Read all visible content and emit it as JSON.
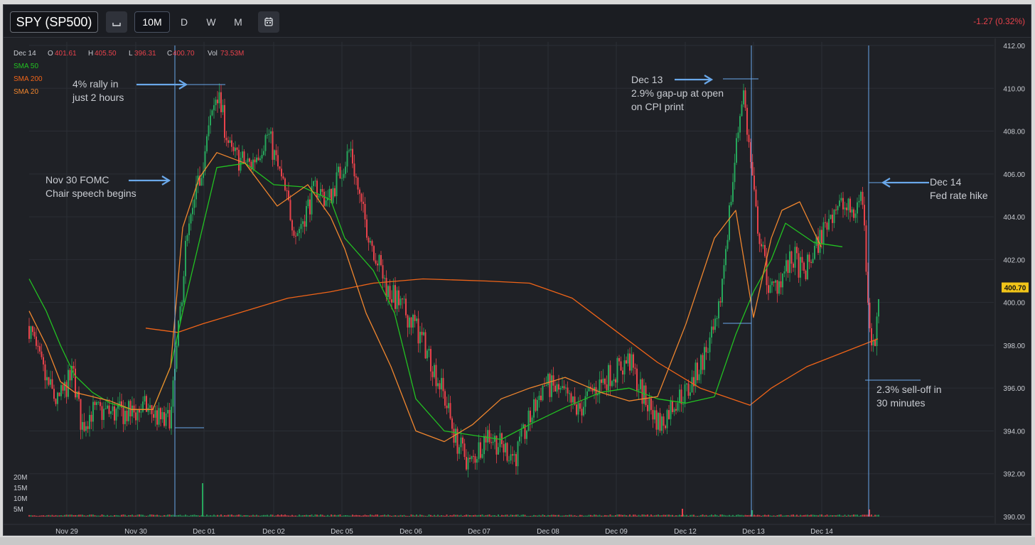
{
  "toolbar": {
    "symbol": "SPY (SP500)",
    "chart_type_icon": "candlestick-icon",
    "timeframes": [
      "10M",
      "D",
      "W",
      "M"
    ],
    "active_timeframe": "10M",
    "calendar_icon": "calendar-icon",
    "change": "-1.27 (0.32%)",
    "change_color": "#e8424b"
  },
  "ohlc": {
    "date": "Dec 14",
    "o_label": "O",
    "o": "401.61",
    "h_label": "H",
    "h": "405.50",
    "l_label": "L",
    "l": "396.31",
    "c_label": "C",
    "c": "400.70",
    "vol_label": "Vol",
    "vol": "73.53M"
  },
  "legend": [
    {
      "name": "SMA 50",
      "color": "#22c122"
    },
    {
      "name": "SMA 200",
      "color": "#f06418"
    },
    {
      "name": "SMA 20",
      "color": "#f0862e"
    }
  ],
  "price_badge": "400.70",
  "colors": {
    "up": "#26a65b",
    "down": "#e8424b",
    "annotation": "#6aa8ea"
  },
  "annotations": [
    {
      "id": "rally",
      "lines": [
        "4% rally in",
        "just 2 hours"
      ]
    },
    {
      "id": "fomc",
      "lines": [
        "Nov 30 FOMC",
        "Chair speech begins"
      ]
    },
    {
      "id": "cpi",
      "lines": [
        "Dec 13",
        "2.9% gap-up at open",
        "on CPI print"
      ]
    },
    {
      "id": "hike",
      "lines": [
        "Dec 14",
        "Fed rate hike"
      ]
    },
    {
      "id": "selloff",
      "lines": [
        "2.3% sell-off in",
        "30 minutes"
      ]
    }
  ],
  "chart_data": {
    "type": "candlestick",
    "title": "SPY (SP500)",
    "interval": "10M",
    "x_tick_labels": [
      "Nov 29",
      "Nov 30",
      "Dec 01",
      "Dec 02",
      "Dec 05",
      "Dec 06",
      "Dec 07",
      "Dec 08",
      "Dec 09",
      "Dec 12",
      "Dec 13",
      "Dec 14"
    ],
    "y_ticks": [
      "390.00",
      "392.00",
      "394.00",
      "396.00",
      "398.00",
      "400.00",
      "402.00",
      "404.00",
      "406.00",
      "408.00",
      "410.00",
      "412.00"
    ],
    "ylim": [
      390,
      412
    ],
    "volume_ticks": [
      "20M",
      "15M",
      "10M",
      "5M"
    ],
    "grid": true,
    "legend_position": "top-left",
    "price_path": [
      {
        "x": "Nov 28",
        "close": 398.9
      },
      {
        "x": "Nov 28",
        "close": 397.5
      },
      {
        "x": "Nov 28",
        "close": 396.3
      },
      {
        "x": "Nov 29",
        "close": 395.3
      },
      {
        "x": "Nov 29",
        "close": 396.7
      },
      {
        "x": "Nov 29",
        "close": 394.2
      },
      {
        "x": "Nov 29",
        "close": 394.9
      },
      {
        "x": "Nov 30",
        "close": 394.8
      },
      {
        "x": "Nov 30",
        "close": 395.1
      },
      {
        "x": "Nov 30",
        "close": 394.3
      },
      {
        "x": "Nov 30",
        "close": 394.9
      },
      {
        "x": "Nov 30",
        "close": 398.6
      },
      {
        "x": "Nov 30",
        "close": 402.5
      },
      {
        "x": "Nov 30",
        "close": 404.8
      },
      {
        "x": "Dec 01",
        "close": 409.9
      },
      {
        "x": "Dec 01",
        "close": 406.9
      },
      {
        "x": "Dec 01",
        "close": 406.4
      },
      {
        "x": "Dec 01",
        "close": 407.9
      },
      {
        "x": "Dec 02",
        "close": 403.2
      },
      {
        "x": "Dec 02",
        "close": 405.4
      },
      {
        "x": "Dec 02",
        "close": 404.7
      },
      {
        "x": "Dec 05",
        "close": 407.2
      },
      {
        "x": "Dec 05",
        "close": 404.3
      },
      {
        "x": "Dec 05",
        "close": 402.6
      },
      {
        "x": "Dec 05",
        "close": 400.6
      },
      {
        "x": "Dec 06",
        "close": 399.1
      },
      {
        "x": "Dec 06",
        "close": 397.6
      },
      {
        "x": "Dec 06",
        "close": 395.6
      },
      {
        "x": "Dec 06",
        "close": 393.6
      },
      {
        "x": "Dec 07",
        "close": 392.4
      },
      {
        "x": "Dec 07",
        "close": 393.9
      },
      {
        "x": "Dec 07",
        "close": 393.3
      },
      {
        "x": "Dec 08",
        "close": 392.8
      },
      {
        "x": "Dec 08",
        "close": 396.2
      },
      {
        "x": "Dec 08",
        "close": 395.8
      },
      {
        "x": "Dec 08",
        "close": 394.9
      },
      {
        "x": "Dec 09",
        "close": 395.9
      },
      {
        "x": "Dec 09",
        "close": 396.6
      },
      {
        "x": "Dec 09",
        "close": 397.3
      },
      {
        "x": "Dec 09",
        "close": 395.6
      },
      {
        "x": "Dec 12",
        "close": 394.3
      },
      {
        "x": "Dec 12",
        "close": 395.4
      },
      {
        "x": "Dec 12",
        "close": 395.9
      },
      {
        "x": "Dec 12",
        "close": 398.9
      },
      {
        "x": "Dec 13",
        "close": 410.1
      },
      {
        "x": "Dec 13",
        "close": 404.2
      },
      {
        "x": "Dec 13",
        "close": 400.4
      },
      {
        "x": "Dec 13",
        "close": 402.1
      },
      {
        "x": "Dec 13",
        "close": 401.3
      },
      {
        "x": "Dec 14",
        "close": 404.6
      },
      {
        "x": "Dec 14",
        "close": 404.2
      },
      {
        "x": "Dec 14",
        "close": 405.1
      },
      {
        "x": "Dec 14",
        "close": 399.2
      },
      {
        "x": "Dec 14",
        "close": 397.6
      },
      {
        "x": "Dec 14",
        "close": 400.7
      }
    ],
    "sma20": [
      {
        "x": "Nov 28",
        "y": 399.6
      },
      {
        "x": "Nov 28",
        "y": 398.0
      },
      {
        "x": "Nov 29",
        "y": 396.3
      },
      {
        "x": "Nov 29",
        "y": 395.8
      },
      {
        "x": "Nov 29",
        "y": 395.6
      },
      {
        "x": "Nov 30",
        "y": 395.4
      },
      {
        "x": "Nov 30",
        "y": 395.0
      },
      {
        "x": "Nov 30",
        "y": 395.0
      },
      {
        "x": "Nov 30",
        "y": 397.0
      },
      {
        "x": "Dec 01",
        "y": 403.5
      },
      {
        "x": "Dec 01",
        "y": 405.8
      },
      {
        "x": "Dec 01",
        "y": 407.0
      },
      {
        "x": "Dec 02",
        "y": 406.5
      },
      {
        "x": "Dec 02",
        "y": 404.5
      },
      {
        "x": "Dec 05",
        "y": 405.5
      },
      {
        "x": "Dec 05",
        "y": 404.0
      },
      {
        "x": "Dec 05",
        "y": 402.5
      },
      {
        "x": "Dec 06",
        "y": 399.5
      },
      {
        "x": "Dec 06",
        "y": 397.0
      },
      {
        "x": "Dec 07",
        "y": 394.0
      },
      {
        "x": "Dec 07",
        "y": 393.5
      },
      {
        "x": "Dec 08",
        "y": 394.3
      },
      {
        "x": "Dec 08",
        "y": 395.5
      },
      {
        "x": "Dec 09",
        "y": 396.0
      },
      {
        "x": "Dec 09",
        "y": 396.5
      },
      {
        "x": "Dec 12",
        "y": 395.8
      },
      {
        "x": "Dec 12",
        "y": 395.4
      },
      {
        "x": "Dec 12",
        "y": 395.6
      },
      {
        "x": "Dec 13",
        "y": 399.0
      },
      {
        "x": "Dec 13",
        "y": 403.0
      },
      {
        "x": "Dec 13",
        "y": 404.3
      },
      {
        "x": "Dec 13",
        "y": 399.3
      },
      {
        "x": "Dec 14",
        "y": 403.0
      },
      {
        "x": "Dec 14",
        "y": 404.3
      },
      {
        "x": "Dec 14",
        "y": 404.7
      },
      {
        "x": "Dec 14",
        "y": 402.6
      }
    ],
    "sma50": [
      {
        "x": "Nov 28",
        "y": 401.1
      },
      {
        "x": "Nov 28",
        "y": 399.6
      },
      {
        "x": "Nov 29",
        "y": 398.0
      },
      {
        "x": "Nov 29",
        "y": 396.6
      },
      {
        "x": "Nov 30",
        "y": 395.8
      },
      {
        "x": "Nov 30",
        "y": 395.3
      },
      {
        "x": "Nov 30",
        "y": 395.0
      },
      {
        "x": "Nov 30",
        "y": 395.0
      },
      {
        "x": "Dec 01",
        "y": 397.0
      },
      {
        "x": "Dec 01",
        "y": 400.0
      },
      {
        "x": "Dec 01",
        "y": 403.5
      },
      {
        "x": "Dec 02",
        "y": 406.3
      },
      {
        "x": "Dec 02",
        "y": 406.5
      },
      {
        "x": "Dec 05",
        "y": 405.5
      },
      {
        "x": "Dec 05",
        "y": 405.4
      },
      {
        "x": "Dec 05",
        "y": 404.8
      },
      {
        "x": "Dec 06",
        "y": 403.0
      },
      {
        "x": "Dec 06",
        "y": 401.5
      },
      {
        "x": "Dec 06",
        "y": 399.5
      },
      {
        "x": "Dec 07",
        "y": 395.5
      },
      {
        "x": "Dec 07",
        "y": 394.0
      },
      {
        "x": "Dec 08",
        "y": 393.8
      },
      {
        "x": "Dec 08",
        "y": 393.6
      },
      {
        "x": "Dec 08",
        "y": 394.3
      },
      {
        "x": "Dec 09",
        "y": 395.1
      },
      {
        "x": "Dec 09",
        "y": 395.8
      },
      {
        "x": "Dec 12",
        "y": 396.0
      },
      {
        "x": "Dec 12",
        "y": 395.5
      },
      {
        "x": "Dec 13",
        "y": 395.3
      },
      {
        "x": "Dec 13",
        "y": 395.6
      },
      {
        "x": "Dec 13",
        "y": 398.5
      },
      {
        "x": "Dec 13",
        "y": 400.5
      },
      {
        "x": "Dec 14",
        "y": 402.0
      },
      {
        "x": "Dec 14",
        "y": 403.7
      },
      {
        "x": "Dec 14",
        "y": 402.8
      },
      {
        "x": "Dec 14",
        "y": 402.6
      }
    ],
    "sma200": [
      {
        "x": "Nov 30",
        "y": 398.8
      },
      {
        "x": "Nov 30",
        "y": 398.6
      },
      {
        "x": "Dec 01",
        "y": 399.0
      },
      {
        "x": "Dec 01",
        "y": 399.5
      },
      {
        "x": "Dec 02",
        "y": 400.2
      },
      {
        "x": "Dec 02",
        "y": 400.5
      },
      {
        "x": "Dec 05",
        "y": 400.9
      },
      {
        "x": "Dec 06",
        "y": 401.1
      },
      {
        "x": "Dec 07",
        "y": 401.0
      },
      {
        "x": "Dec 08",
        "y": 400.9
      },
      {
        "x": "Dec 08",
        "y": 400.2
      },
      {
        "x": "Dec 09",
        "y": 398.7
      },
      {
        "x": "Dec 09",
        "y": 397.2
      },
      {
        "x": "Dec 12",
        "y": 396.0
      },
      {
        "x": "Dec 13",
        "y": 395.2
      },
      {
        "x": "Dec 13",
        "y": 396.0
      },
      {
        "x": "Dec 14",
        "y": 397.0
      },
      {
        "x": "Dec 14",
        "y": 398.3
      }
    ]
  }
}
